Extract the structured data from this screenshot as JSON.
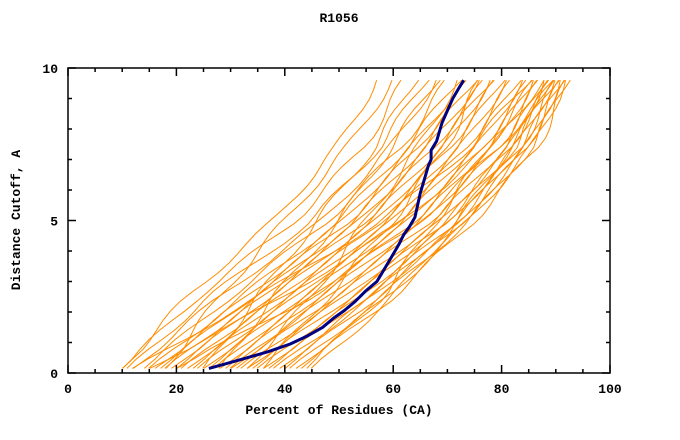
{
  "chart_data": {
    "type": "line",
    "title": "R1056",
    "xlabel": "Percent of Residues (CA)",
    "ylabel": "Distance Cutoff, A",
    "xlim": [
      0,
      100
    ],
    "ylim": [
      0,
      10
    ],
    "x_major_ticks": [
      0,
      20,
      40,
      60,
      80,
      100
    ],
    "x_minor_step": 5,
    "y_major_ticks": [
      0,
      5,
      10
    ],
    "y_minor_step": 1,
    "grid": false,
    "legend": "none",
    "colors": {
      "prediction": "#FF8C00",
      "reference": "#000080",
      "axis": "#000000",
      "background": "#FFFFFF"
    },
    "reference_series": {
      "name": "reference-model-navy",
      "points": [
        [
          26,
          0.15
        ],
        [
          29,
          0.3
        ],
        [
          33,
          0.5
        ],
        [
          37,
          0.7
        ],
        [
          41,
          0.95
        ],
        [
          44,
          1.2
        ],
        [
          47,
          1.5
        ],
        [
          49,
          1.8
        ],
        [
          51,
          2.05
        ],
        [
          53,
          2.35
        ],
        [
          55,
          2.7
        ],
        [
          57,
          3.0
        ],
        [
          58,
          3.3
        ],
        [
          59,
          3.6
        ],
        [
          60,
          3.9
        ],
        [
          61,
          4.2
        ],
        [
          62,
          4.55
        ],
        [
          63,
          4.8
        ],
        [
          64,
          5.1
        ],
        [
          64.5,
          5.5
        ],
        [
          65,
          5.9
        ],
        [
          65.5,
          6.2
        ],
        [
          66,
          6.5
        ],
        [
          66.5,
          6.8
        ],
        [
          67,
          7.0
        ],
        [
          67,
          7.3
        ],
        [
          68,
          7.6
        ],
        [
          68.5,
          7.9
        ],
        [
          69,
          8.2
        ],
        [
          70,
          8.6
        ],
        [
          71,
          9.0
        ],
        [
          72,
          9.3
        ],
        [
          73,
          9.6
        ]
      ]
    },
    "prediction_series": {
      "name": "prediction-models-orange",
      "y_anchors": [
        0.15,
        2.5,
        5,
        7.5,
        9.6
      ],
      "curves": [
        [
          10,
          22,
          38,
          50,
          57
        ],
        [
          10,
          24,
          42,
          55,
          62
        ],
        [
          11,
          26,
          45,
          58,
          66
        ],
        [
          12,
          28,
          47,
          60,
          68
        ],
        [
          14,
          30,
          48,
          62,
          70
        ],
        [
          15,
          32,
          50,
          63,
          72
        ],
        [
          16,
          33,
          51,
          64,
          73
        ],
        [
          17,
          34,
          52,
          65,
          74
        ],
        [
          18,
          35,
          53,
          66,
          75
        ],
        [
          19,
          36,
          54,
          67,
          76
        ],
        [
          20,
          37,
          55,
          68,
          77
        ],
        [
          21,
          38,
          56,
          69,
          78
        ],
        [
          22,
          39,
          57,
          70,
          78
        ],
        [
          23,
          40,
          58,
          71,
          79
        ],
        [
          24,
          41,
          59,
          72,
          80
        ],
        [
          25,
          42,
          60,
          73,
          81
        ],
        [
          26,
          43,
          61,
          74,
          82
        ],
        [
          27,
          44,
          62,
          75,
          83
        ],
        [
          28,
          45,
          63,
          76,
          84
        ],
        [
          29,
          46,
          64,
          77,
          85
        ],
        [
          30,
          47,
          65,
          78,
          86
        ],
        [
          30,
          48,
          66,
          79,
          86
        ],
        [
          31,
          49,
          67,
          80,
          87
        ],
        [
          32,
          50,
          68,
          81,
          88
        ],
        [
          33,
          51,
          69,
          82,
          88
        ],
        [
          34,
          52,
          70,
          82,
          89
        ],
        [
          35,
          53,
          70,
          83,
          89
        ],
        [
          36,
          54,
          71,
          83,
          90
        ],
        [
          37,
          55,
          72,
          84,
          90
        ],
        [
          38,
          56,
          72,
          84,
          91
        ],
        [
          39,
          56,
          73,
          85,
          91
        ],
        [
          40,
          57,
          73,
          85,
          91
        ],
        [
          41,
          58,
          74,
          86,
          92
        ],
        [
          42,
          59,
          74,
          86,
          92
        ],
        [
          43,
          60,
          75,
          87,
          92
        ],
        [
          12,
          35,
          58,
          75,
          85
        ],
        [
          15,
          40,
          62,
          78,
          88
        ],
        [
          20,
          45,
          65,
          80,
          90
        ],
        [
          28,
          38,
          50,
          60,
          68
        ],
        [
          33,
          45,
          55,
          65,
          72
        ],
        [
          36,
          48,
          60,
          70,
          76
        ],
        [
          25,
          35,
          46,
          57,
          64
        ],
        [
          18,
          28,
          40,
          52,
          60
        ],
        [
          44,
          58,
          68,
          78,
          86
        ],
        [
          45,
          60,
          72,
          82,
          90
        ]
      ]
    }
  }
}
